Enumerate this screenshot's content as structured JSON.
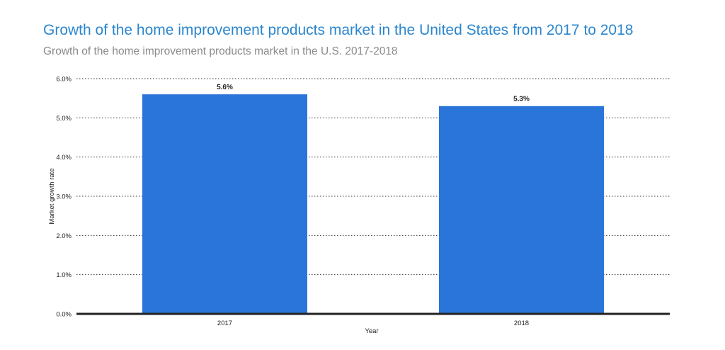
{
  "chart_data": {
    "type": "bar",
    "title": "Growth of the home improvement products market in the United States from 2017 to 2018",
    "subtitle": "Growth of the home improvement products market in the U.S. 2017-2018",
    "xlabel": "Year",
    "ylabel": "Market growth rate",
    "categories": [
      "2017",
      "2018"
    ],
    "values": [
      5.6,
      5.3
    ],
    "value_labels": [
      "5.6%",
      "5.3%"
    ],
    "ylim": [
      0,
      6
    ],
    "yticks": [
      0,
      1,
      2,
      3,
      4,
      5,
      6
    ],
    "ytick_labels": [
      "0.0%",
      "1.0%",
      "2.0%",
      "3.0%",
      "4.0%",
      "5.0%",
      "6.0%"
    ],
    "grid": true,
    "grid_style": "dotted",
    "legend": "none",
    "bar_color": "#2a75d9",
    "axis_color": "#222222"
  }
}
